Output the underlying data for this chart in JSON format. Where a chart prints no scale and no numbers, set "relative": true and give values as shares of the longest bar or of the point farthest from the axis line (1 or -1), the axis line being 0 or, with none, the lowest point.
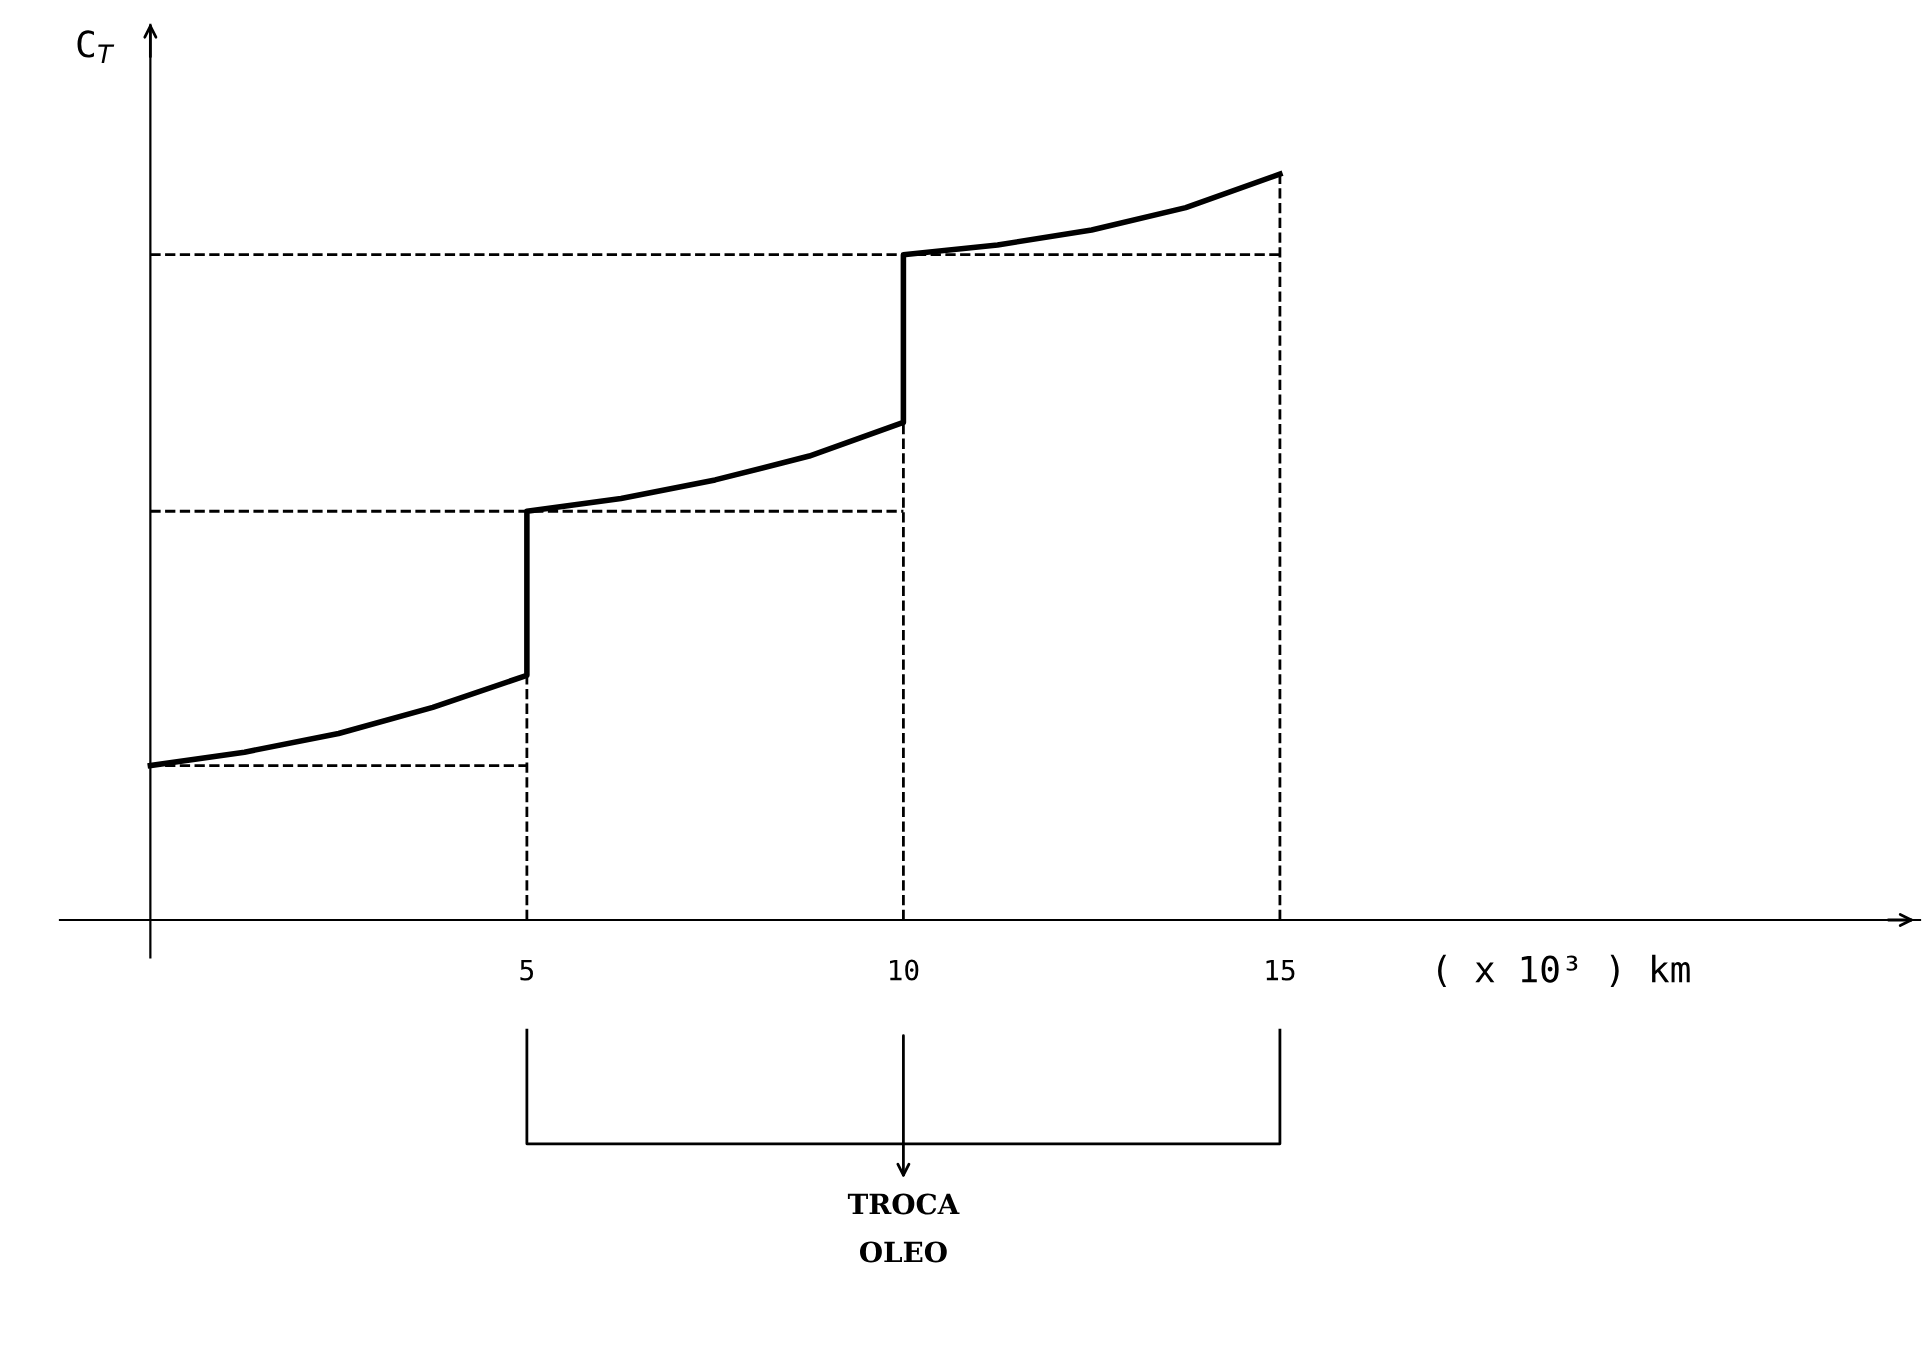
{
  "chart_data": {
    "type": "line",
    "relative": true,
    "xlabel": "( x 10³ ) km",
    "ylabel": "C$_{T}$",
    "xlim": [
      -1.2,
      23.5
    ],
    "xticks": [
      5,
      10,
      15
    ],
    "grid": false,
    "legend": false,
    "marker": "none",
    "annotations": [
      "TROCA\nOLEO"
    ],
    "series": [
      {
        "color": "#000000",
        "line_style": "solid",
        "x": [
          0,
          1.25,
          2.5,
          3.75,
          5,
          5,
          6.25,
          7.5,
          8.75,
          10,
          10,
          11.25,
          12.5,
          13.75,
          15
        ],
        "values": [
          0.207,
          0.225,
          0.25,
          0.285,
          0.328,
          0.548,
          0.565,
          0.59,
          0.622,
          0.667,
          0.892,
          0.905,
          0.925,
          0.955,
          1
        ]
      },
      {
        "color": "#000000",
        "line_style": "dashed",
        "x": [
          0,
          5
        ],
        "values": [
          0.207,
          0.207
        ]
      },
      {
        "color": "#000000",
        "line_style": "dashed",
        "x": [
          0,
          10
        ],
        "values": [
          0.548,
          0.548
        ]
      },
      {
        "color": "#000000",
        "line_style": "dashed",
        "x": [
          0,
          15
        ],
        "values": [
          0.892,
          0.892
        ]
      },
      {
        "color": "#000000",
        "line_style": "dashed",
        "x": [
          5,
          5
        ],
        "values": [
          0,
          0.328
        ]
      },
      {
        "color": "#000000",
        "line_style": "dashed",
        "x": [
          10,
          10
        ],
        "values": [
          0,
          0.667
        ]
      },
      {
        "color": "#000000",
        "line_style": "dashed",
        "x": [
          15,
          15
        ],
        "values": [
          0,
          1
        ]
      }
    ]
  }
}
